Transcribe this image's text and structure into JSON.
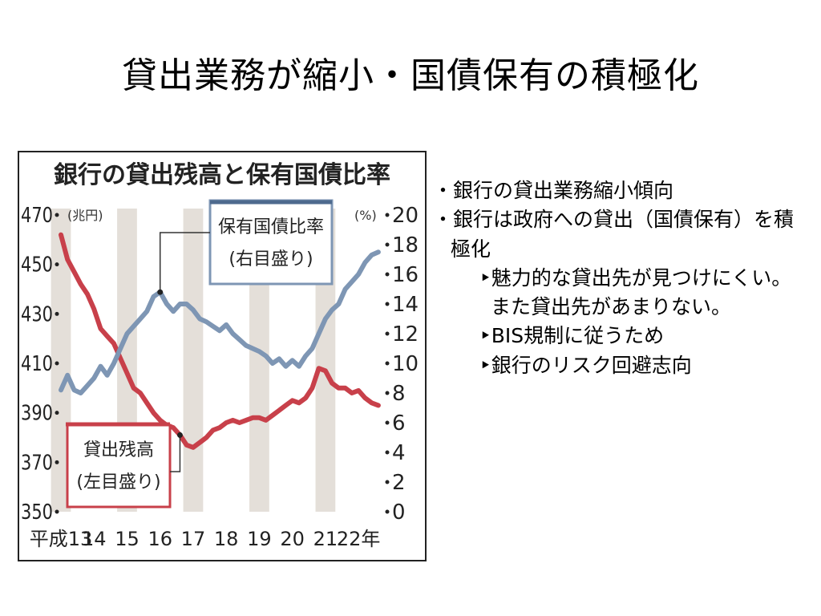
{
  "slide": {
    "title": "貸出業務が縮小・国債保有の積極化"
  },
  "bullets": [
    {
      "level": 1,
      "text": "・銀行の貸出業務縮小傾向"
    },
    {
      "level": 1,
      "text": "・銀行は政府への貸出（国債保有）を積極化"
    },
    {
      "level": 2,
      "text": "‣魅力的な貸出先が見つけにくい。また貸出先があまりない。"
    },
    {
      "level": 2,
      "text": "‣BIS規制に従うため"
    },
    {
      "level": 2,
      "text": "‣銀行のリスク回避志向"
    }
  ],
  "chart_data": {
    "type": "line",
    "title": "銀行の貸出残高と保有国債比率",
    "left_unit": "(兆円)",
    "right_unit": "(%)",
    "x_ticks": [
      "平成13",
      "14",
      "15",
      "16",
      "17",
      "18",
      "19",
      "20",
      "21",
      "22年"
    ],
    "y_left_ticks": [
      470,
      450,
      430,
      410,
      390,
      370,
      350
    ],
    "y_right_ticks": [
      20,
      18,
      16,
      14,
      12,
      10,
      8,
      6,
      4,
      2,
      0
    ],
    "ylim_left": [
      350,
      470
    ],
    "ylim_right": [
      0,
      20
    ],
    "xlim": [
      13,
      22.7
    ],
    "series": [
      {
        "name": "貸出残高",
        "label": "貸出残高\n(左目盛り)",
        "axis": "left",
        "color": "#c8404a",
        "x": [
          13.0,
          13.2,
          13.4,
          13.6,
          13.8,
          14.0,
          14.2,
          14.4,
          14.6,
          14.8,
          15.0,
          15.2,
          15.4,
          15.6,
          15.8,
          16.0,
          16.2,
          16.4,
          16.6,
          16.8,
          17.0,
          17.2,
          17.4,
          17.6,
          17.8,
          18.0,
          18.2,
          18.4,
          18.6,
          18.8,
          19.0,
          19.2,
          19.4,
          19.6,
          19.8,
          20.0,
          20.2,
          20.4,
          20.6,
          20.8,
          21.0,
          21.2,
          21.4,
          21.6,
          21.8,
          22.0,
          22.2,
          22.4,
          22.6
        ],
        "values": [
          462,
          452,
          447,
          442,
          438,
          432,
          424,
          421,
          418,
          412,
          406,
          400,
          398,
          394,
          390,
          387,
          385,
          384,
          381,
          377,
          376,
          378,
          380,
          383,
          384,
          386,
          387,
          386,
          387,
          388,
          388,
          387,
          389,
          391,
          393,
          395,
          394,
          396,
          400,
          408,
          407,
          402,
          400,
          400,
          398,
          399,
          396,
          394,
          393
        ]
      },
      {
        "name": "保有国債比率",
        "label": "保有国債比率\n(右目盛り)",
        "axis": "right",
        "color": "#7e96b4",
        "x": [
          13.0,
          13.2,
          13.4,
          13.6,
          13.8,
          14.0,
          14.2,
          14.4,
          14.6,
          14.8,
          15.0,
          15.2,
          15.4,
          15.6,
          15.8,
          16.0,
          16.2,
          16.4,
          16.6,
          16.8,
          17.0,
          17.2,
          17.4,
          17.6,
          17.8,
          18.0,
          18.2,
          18.4,
          18.6,
          18.8,
          19.0,
          19.2,
          19.4,
          19.6,
          19.8,
          20.0,
          20.2,
          20.4,
          20.6,
          20.8,
          21.0,
          21.2,
          21.4,
          21.6,
          21.8,
          22.0,
          22.2,
          22.4,
          22.6
        ],
        "values": [
          8.2,
          9.2,
          8.2,
          8.0,
          8.5,
          9.0,
          9.8,
          9.2,
          10.0,
          11.0,
          12.0,
          12.5,
          13.0,
          13.5,
          14.5,
          14.8,
          14.0,
          13.5,
          14.0,
          14.0,
          13.6,
          13.0,
          12.8,
          12.5,
          12.2,
          12.6,
          12.0,
          11.6,
          11.2,
          11.0,
          10.8,
          10.5,
          10.0,
          10.3,
          9.8,
          10.2,
          9.8,
          10.5,
          11.0,
          12.0,
          13.0,
          13.6,
          14.0,
          15.0,
          15.5,
          16.0,
          16.8,
          17.3,
          17.5
        ]
      }
    ],
    "shaded_years": [
      13,
      15,
      17,
      19,
      21
    ],
    "grid": false
  }
}
